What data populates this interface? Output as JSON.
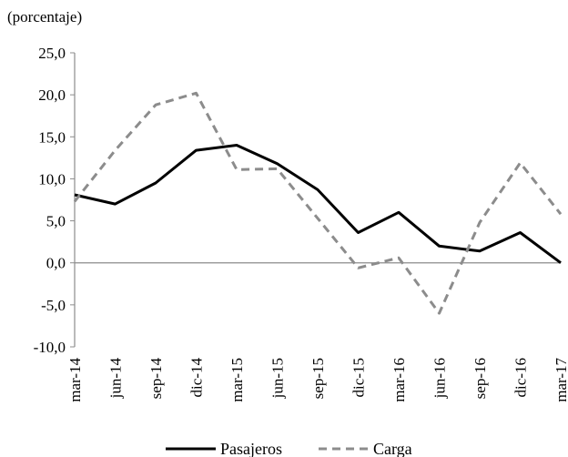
{
  "chart_data": {
    "type": "line",
    "unit_label": "(porcentaje)",
    "categories": [
      "mar-14",
      "jun-14",
      "sep-14",
      "dic-14",
      "mar-15",
      "jun-15",
      "sep-15",
      "dic-15",
      "mar-16",
      "jun-16",
      "sep-16",
      "dic-16",
      "mar-17"
    ],
    "ylim": [
      -10,
      25
    ],
    "yticks": [
      "-10,0",
      "-5,0",
      "0,0",
      "5,0",
      "10,0",
      "15,0",
      "20,0",
      "25,0"
    ],
    "ytick_values": [
      -10,
      -5,
      0,
      5,
      10,
      15,
      20,
      25
    ],
    "grid": false,
    "legend_position": "bottom",
    "series": [
      {
        "name": "Pasajeros",
        "color": "#000000",
        "style": "solid",
        "values": [
          8.1,
          7.0,
          9.5,
          13.4,
          14.0,
          11.8,
          8.7,
          3.6,
          6.0,
          2.0,
          1.4,
          3.6,
          0.0
        ]
      },
      {
        "name": "Carga",
        "color": "#8c8c8c",
        "style": "dashed",
        "values": [
          7.3,
          13.4,
          18.8,
          20.2,
          11.1,
          11.2,
          5.3,
          -0.6,
          0.6,
          -6.0,
          4.8,
          11.9,
          5.8
        ]
      }
    ]
  }
}
